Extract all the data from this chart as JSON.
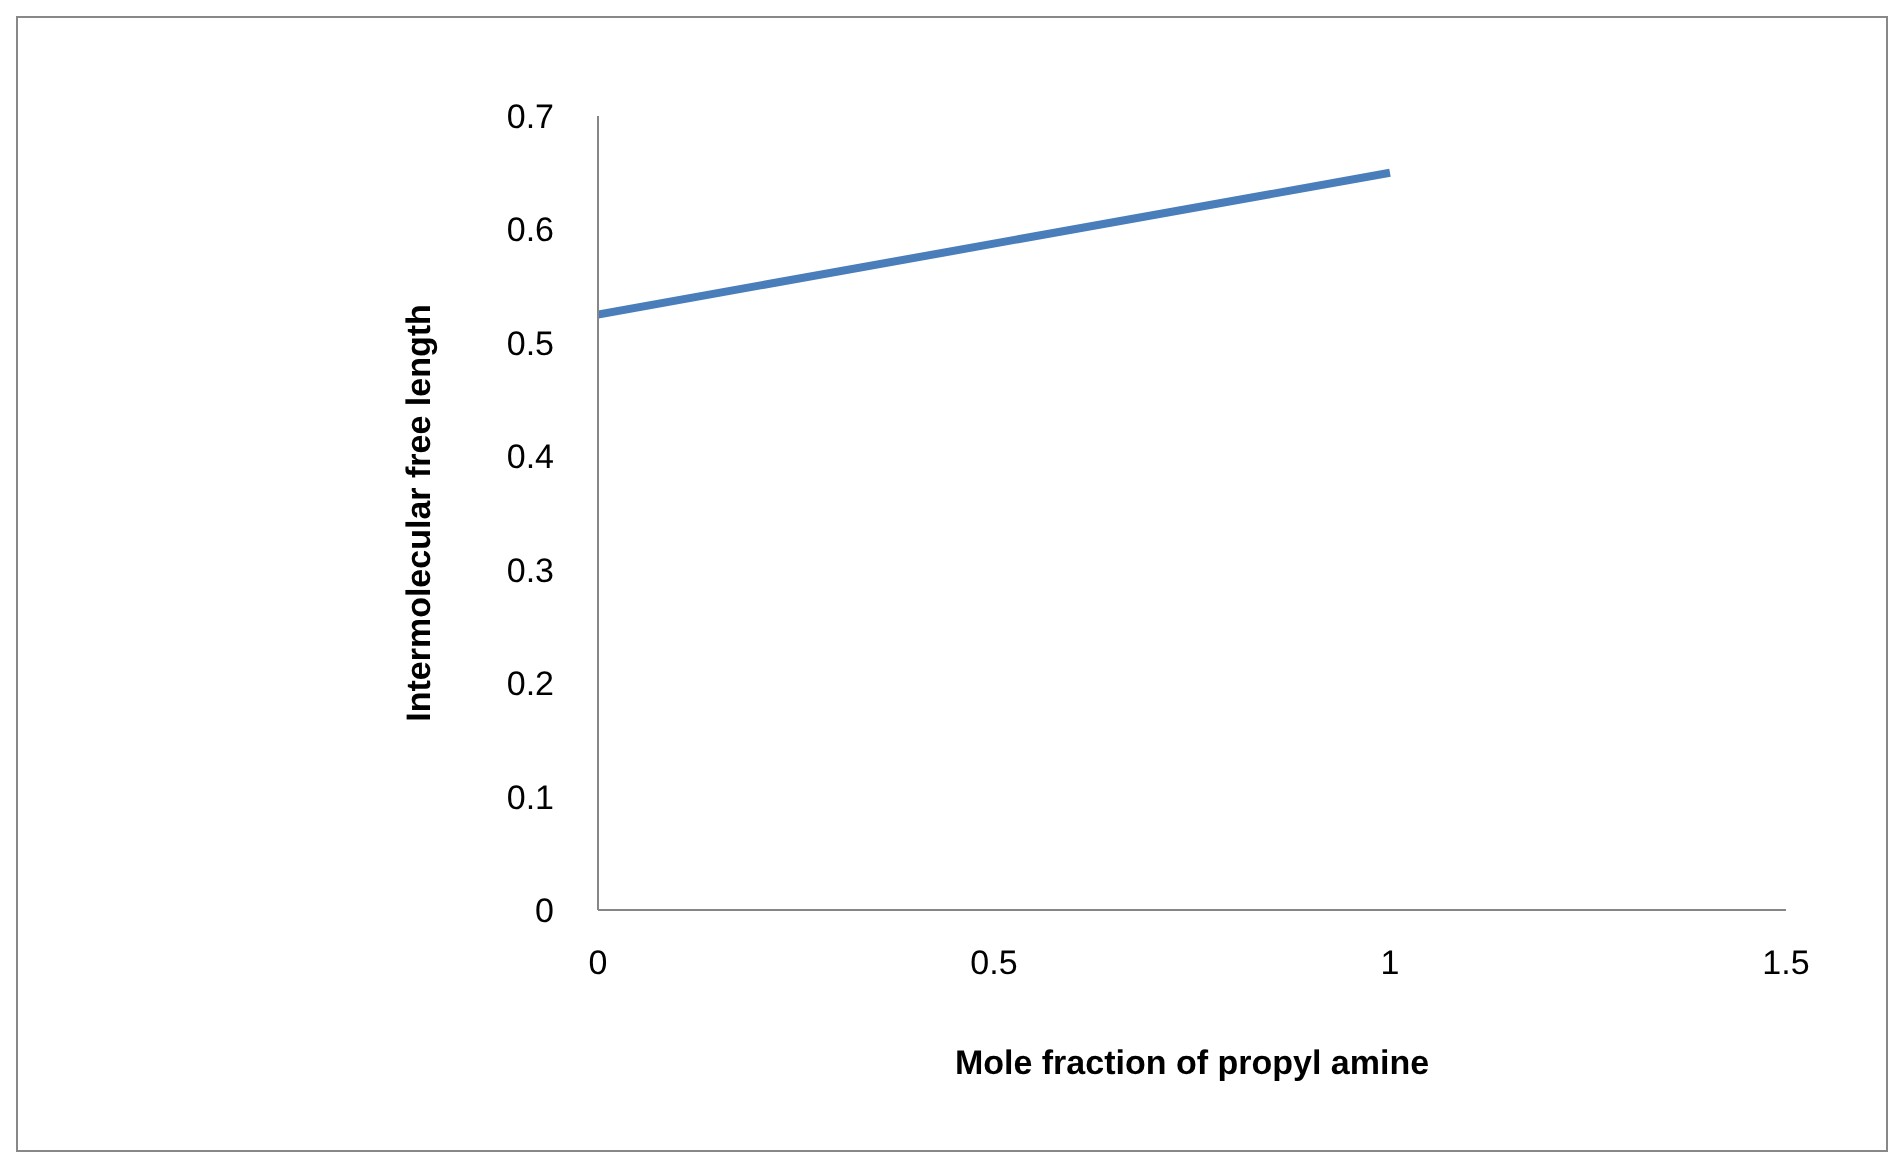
{
  "chart_data": {
    "type": "line",
    "xlabel": "Mole fraction of propyl amine",
    "ylabel": "Intermolecular free length",
    "x": [
      0,
      1
    ],
    "series": [
      {
        "color": "#4a7ebb",
        "values": [
          0.525,
          0.65
        ]
      }
    ],
    "xlim": [
      0,
      1.5
    ],
    "xticks": [
      0,
      0.5,
      1,
      1.5
    ],
    "ylim": [
      0,
      0.7
    ],
    "yticks": [
      0,
      0.1,
      0.2,
      0.3,
      0.4,
      0.5,
      0.6,
      0.7
    ],
    "grid": false,
    "legend": false,
    "marker": "none",
    "line_style": "solid"
  }
}
